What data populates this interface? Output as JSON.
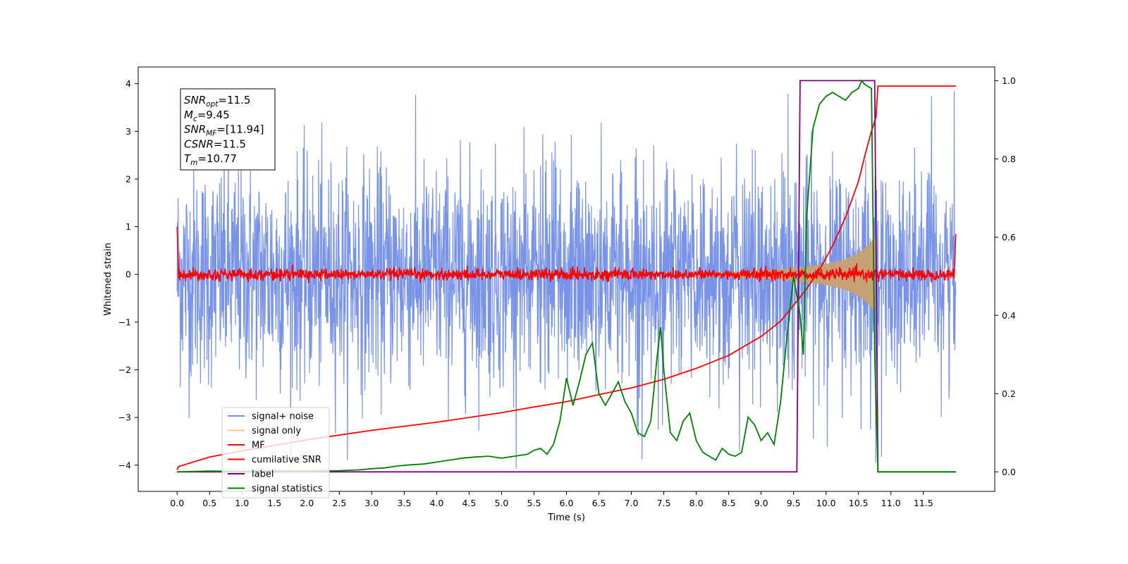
{
  "chart_data": {
    "type": "line",
    "xlabel": "Time (s)",
    "ylabel": "Whitened strain",
    "xlim": [
      -0.6,
      12.6
    ],
    "ylim": [
      -4.55,
      4.35
    ],
    "ylim_right": [
      -0.05,
      1.035
    ],
    "x_ticks": [
      0.0,
      0.5,
      1.0,
      1.5,
      2.0,
      2.5,
      3.0,
      3.5,
      4.0,
      4.5,
      5.0,
      5.5,
      6.0,
      6.5,
      7.0,
      7.5,
      8.0,
      8.5,
      9.0,
      9.5,
      10.0,
      10.5,
      11.0,
      11.5
    ],
    "x_tick_labels": [
      "0.0",
      "0.5",
      "1.0",
      "1.5",
      "2.0",
      "2.5",
      "3.0",
      "3.5",
      "4.0",
      "4.5",
      "5.0",
      "5.5",
      "6.0",
      "6.5",
      "7.0",
      "7.5",
      "8.0",
      "8.5",
      "9.0",
      "9.5",
      "10.0",
      "10.5",
      "11.0",
      "11.5"
    ],
    "y_ticks": [
      -4,
      -3,
      -2,
      -1,
      0,
      1,
      2,
      3,
      4
    ],
    "y_tick_labels": [
      "−4",
      "−3",
      "−2",
      "−1",
      "0",
      "1",
      "2",
      "3",
      "4"
    ],
    "y_right_ticks": [
      0.0,
      0.2,
      0.4,
      0.6,
      0.8,
      1.0
    ],
    "y_right_tick_labels": [
      "0.0",
      "0.2",
      "0.4",
      "0.6",
      "0.8",
      "1.0"
    ],
    "annotation": {
      "lines": [
        {
          "main": "SNR",
          "sub": "opt",
          "rest": "=11.5"
        },
        {
          "main": "M",
          "sub": "c",
          "rest": "=9.45"
        },
        {
          "main": "SNR",
          "sub": "MF",
          "rest": "=[11.94]"
        },
        {
          "main": "CSNR",
          "sub": "",
          "rest": "=11.5"
        },
        {
          "main": "T",
          "sub": "m",
          "rest": "=10.77"
        }
      ]
    },
    "legend": {
      "placement": "lower-left",
      "entries": [
        {
          "label": "signal+ noise",
          "color": "#7893e8"
        },
        {
          "label": "signal only",
          "color": "#f5c87a"
        },
        {
          "label": "MF",
          "color": "#ff0000"
        },
        {
          "label": "cumilative SNR",
          "color": "#ff0000"
        },
        {
          "label": "label",
          "color": "#800080"
        },
        {
          "label": "signal statistics",
          "color": "#008000"
        }
      ]
    },
    "series": [
      {
        "name": "signal+ noise",
        "axis": "left",
        "color": "#7893e8",
        "description_values": {
          "x_range": [
            0.0,
            12.0
          ],
          "band_low": -2.2,
          "band_high": 2.2,
          "peak_high": 3.9,
          "peak_low": -4.2
        }
      },
      {
        "name": "signal only",
        "axis": "left",
        "color": "#c8a070",
        "envelope": {
          "x": [
            8.0,
            8.5,
            9.0,
            9.5,
            10.0,
            10.3,
            10.5,
            10.65,
            10.77
          ],
          "amp": [
            0.03,
            0.05,
            0.08,
            0.13,
            0.22,
            0.32,
            0.45,
            0.62,
            0.82
          ]
        }
      },
      {
        "name": "MF",
        "axis": "left",
        "color": "#ff0000",
        "values": {
          "x_range": [
            0.0,
            12.0
          ],
          "center": 0.0,
          "band": 0.14,
          "start_value": 1.0,
          "end_value": 0.85
        }
      },
      {
        "name": "cumilative SNR",
        "axis": "left",
        "color": "#ff0000",
        "x": [
          0.0,
          0.02,
          0.5,
          1.0,
          2.0,
          3.0,
          4.0,
          5.0,
          5.5,
          6.0,
          6.5,
          7.0,
          7.5,
          8.0,
          8.5,
          9.0,
          9.3,
          9.5,
          9.7,
          9.9,
          10.1,
          10.3,
          10.5,
          10.6,
          10.7,
          10.77,
          10.8,
          12.0
        ],
        "y": [
          -4.1,
          -4.03,
          -3.83,
          -3.7,
          -3.47,
          -3.27,
          -3.1,
          -2.9,
          -2.78,
          -2.67,
          -2.52,
          -2.38,
          -2.2,
          -1.97,
          -1.7,
          -1.3,
          -0.98,
          -0.65,
          -0.3,
          0.1,
          0.6,
          1.2,
          1.95,
          2.5,
          3.0,
          3.3,
          3.95,
          3.95
        ]
      },
      {
        "name": "label",
        "axis": "right",
        "color": "#800080",
        "x": [
          0.0,
          9.55,
          9.6,
          10.75,
          10.8,
          12.0
        ],
        "y": [
          0.0,
          0.0,
          1.0,
          1.0,
          0.0,
          0.0
        ]
      },
      {
        "name": "signal statistics",
        "axis": "right",
        "color": "#008000",
        "x": [
          0.0,
          0.5,
          1.0,
          1.5,
          2.0,
          2.5,
          2.8,
          3.0,
          3.2,
          3.4,
          3.6,
          3.8,
          4.0,
          4.2,
          4.4,
          4.6,
          4.8,
          5.0,
          5.2,
          5.4,
          5.5,
          5.6,
          5.7,
          5.8,
          5.9,
          6.0,
          6.1,
          6.2,
          6.3,
          6.4,
          6.5,
          6.6,
          6.7,
          6.8,
          6.9,
          7.0,
          7.1,
          7.2,
          7.3,
          7.4,
          7.45,
          7.5,
          7.6,
          7.7,
          7.8,
          7.9,
          8.0,
          8.1,
          8.2,
          8.3,
          8.4,
          8.5,
          8.6,
          8.7,
          8.8,
          8.9,
          9.0,
          9.1,
          9.2,
          9.3,
          9.4,
          9.5,
          9.6,
          9.65,
          9.7,
          9.8,
          9.9,
          10.0,
          10.1,
          10.2,
          10.3,
          10.4,
          10.5,
          10.55,
          10.6,
          10.7,
          10.75,
          10.8,
          11.0,
          12.0
        ],
        "y": [
          0.0,
          0.002,
          0.001,
          0.002,
          0.002,
          0.003,
          0.005,
          0.008,
          0.01,
          0.015,
          0.018,
          0.02,
          0.025,
          0.03,
          0.035,
          0.038,
          0.04,
          0.035,
          0.04,
          0.045,
          0.055,
          0.06,
          0.045,
          0.07,
          0.13,
          0.24,
          0.17,
          0.23,
          0.3,
          0.33,
          0.2,
          0.17,
          0.2,
          0.23,
          0.18,
          0.15,
          0.1,
          0.09,
          0.13,
          0.3,
          0.37,
          0.26,
          0.1,
          0.08,
          0.13,
          0.15,
          0.08,
          0.05,
          0.04,
          0.03,
          0.06,
          0.045,
          0.04,
          0.05,
          0.14,
          0.12,
          0.08,
          0.1,
          0.07,
          0.18,
          0.35,
          0.5,
          0.4,
          0.3,
          0.65,
          0.88,
          0.94,
          0.96,
          0.97,
          0.96,
          0.95,
          0.97,
          0.98,
          1.0,
          0.99,
          0.98,
          0.3,
          0.0,
          0.0,
          0.0
        ]
      }
    ]
  }
}
